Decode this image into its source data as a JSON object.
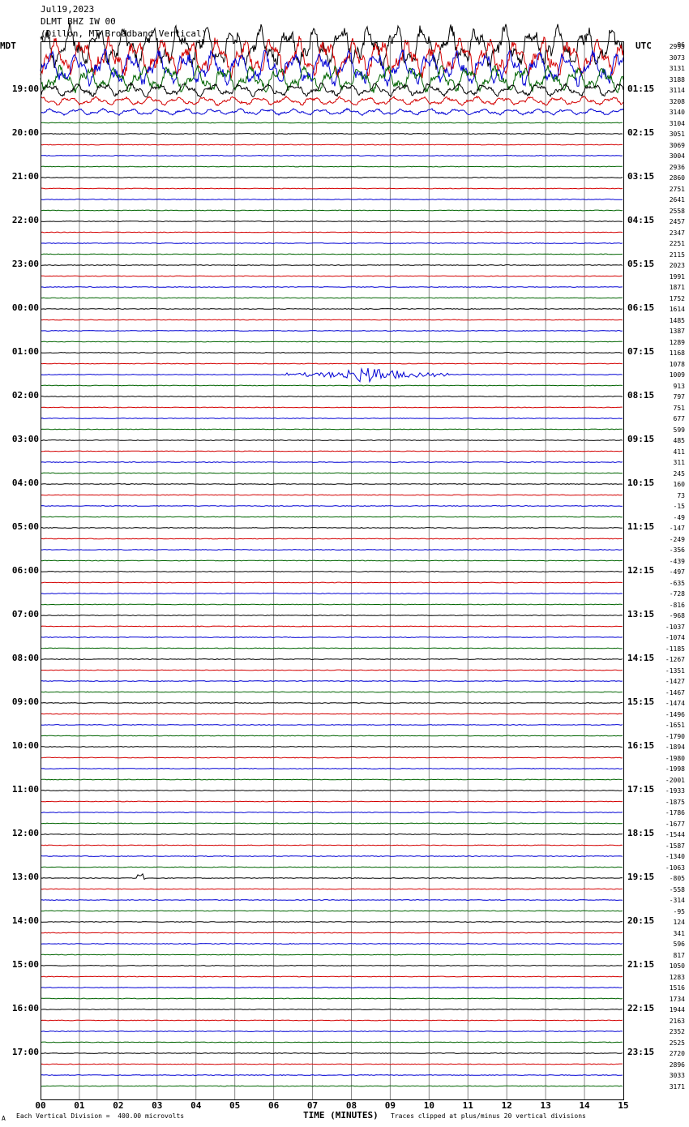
{
  "header": {
    "date": "Jul19,2023",
    "station": "DLMT BHZ IW 00",
    "location": "(Dillon, MT Broadband Vertical)"
  },
  "left_zone": "MDT",
  "right_zone": "UTC",
  "top_right_count": "96",
  "footer": {
    "corner_mark": "A",
    "scale": "Each Vertical Division =  400.00 microvolts",
    "xlabel": "TIME (MINUTES)",
    "clip_note": "Traces clipped at plus/minus 20 vertical divisions"
  },
  "colors": {
    "cycle": [
      "#000000",
      "#d40000",
      "#0000d4",
      "#006400"
    ],
    "grid": "#888888"
  },
  "chart_data": {
    "type": "line",
    "title": "DLMT BHZ IW 00",
    "xlabel": "TIME (MINUTES)",
    "xlim": [
      0,
      15
    ],
    "x_ticks": [
      "00",
      "01",
      "02",
      "03",
      "04",
      "05",
      "06",
      "07",
      "08",
      "09",
      "10",
      "11",
      "12",
      "13",
      "14",
      "15"
    ],
    "left_hour_labels": [
      "19:00",
      "20:00",
      "21:00",
      "22:00",
      "23:00",
      "00:00",
      "01:00",
      "02:00",
      "03:00",
      "04:00",
      "05:00",
      "06:00",
      "07:00",
      "08:00",
      "09:00",
      "10:00",
      "11:00",
      "12:00",
      "13:00",
      "14:00",
      "15:00",
      "16:00",
      "17:00"
    ],
    "right_hour_labels": [
      "01:15",
      "02:15",
      "03:15",
      "04:15",
      "05:15",
      "06:15",
      "07:15",
      "08:15",
      "09:15",
      "10:15",
      "11:15",
      "12:15",
      "13:15",
      "14:15",
      "15:15",
      "16:15",
      "17:15",
      "18:15",
      "19:15",
      "20:15",
      "21:15",
      "22:15",
      "23:15"
    ],
    "trace_counts": [
      "2995",
      "3073",
      "3131",
      "3188",
      "3114",
      "3208",
      "3140",
      "3104",
      "3051",
      "3069",
      "3004",
      "2936",
      "2860",
      "2751",
      "2641",
      "2558",
      "2457",
      "2347",
      "2251",
      "2115",
      "2023",
      "1991",
      "1871",
      "1752",
      "1614",
      "1485",
      "1387",
      "1289",
      "1168",
      "1078",
      "1009",
      "913",
      "797",
      "751",
      "677",
      "599",
      "485",
      "411",
      "311",
      "245",
      "160",
      "73",
      "-15",
      "-49",
      "-147",
      "-249",
      "-356",
      "-439",
      "-497",
      "-635",
      "-728",
      "-816",
      "-968",
      "-1037",
      "-1074",
      "-1185",
      "-1267",
      "-1351",
      "-1427",
      "-1467",
      "-1474",
      "-1496",
      "-1651",
      "-1790",
      "-1894",
      "-1980",
      "-1998",
      "-2001",
      "-1933",
      "-1875",
      "-1786",
      "-1677",
      "-1544",
      "-1587",
      "-1340",
      "-1063",
      "-805",
      "-558",
      "-314",
      "-95",
      "124",
      "341",
      "596",
      "817",
      "1050",
      "1283",
      "1516",
      "1734",
      "1944",
      "2163",
      "2352",
      "2525",
      "2720",
      "2896",
      "3033",
      "3171"
    ],
    "events": [
      {
        "trace_index": 30,
        "start_min": 6.3,
        "peak_min": 8.4,
        "end_min": 10.5,
        "description": "earthquake signal"
      },
      {
        "trace_index": 76,
        "start_min": 2.5,
        "peak_min": 2.6,
        "end_min": 2.7,
        "description": "small spike"
      }
    ],
    "noisy_traces": [
      0,
      1,
      2,
      3,
      4,
      5,
      6
    ]
  }
}
